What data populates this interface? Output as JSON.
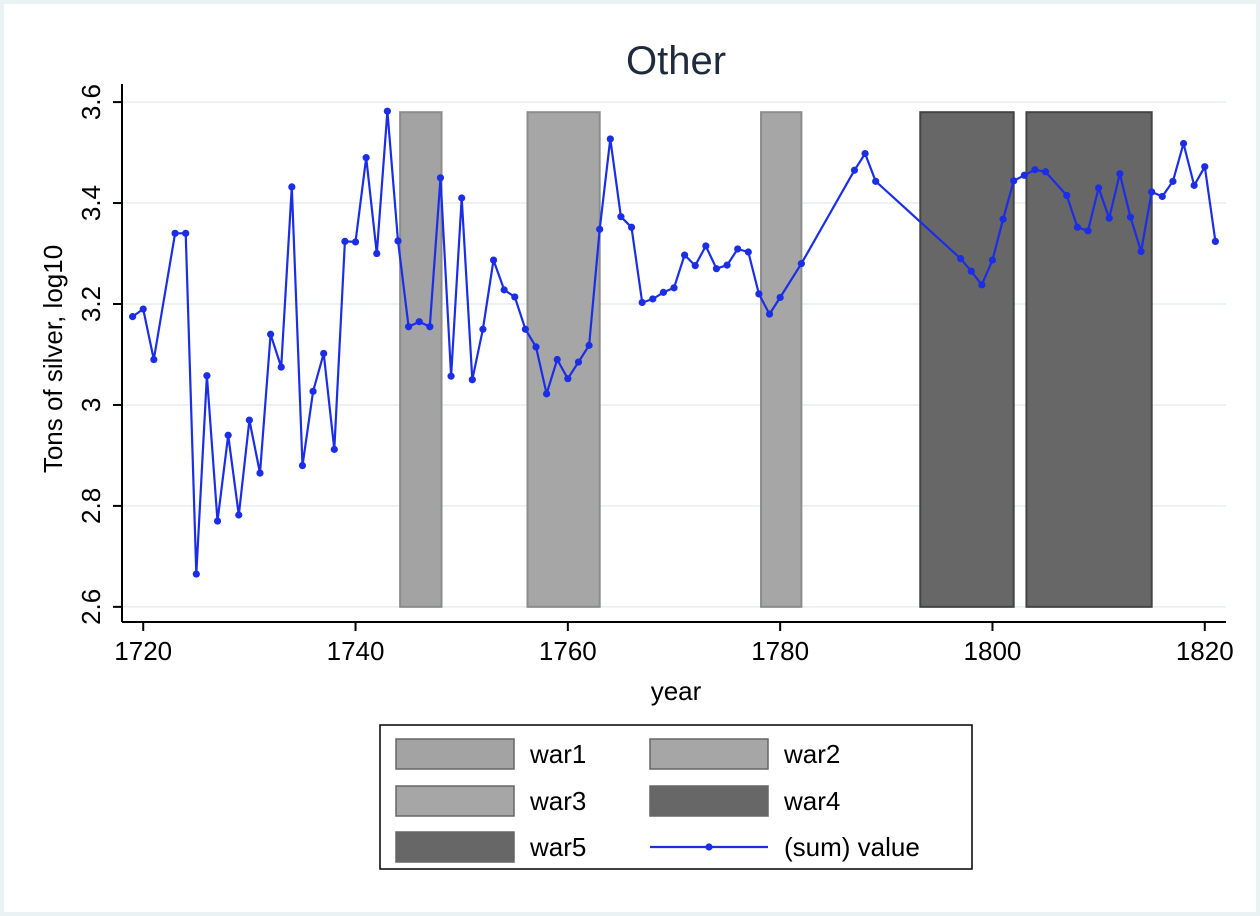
{
  "chart_data": {
    "type": "line",
    "title": "Other",
    "xlabel": "year",
    "ylabel": "Tons of silver, log10",
    "xlim": [
      1718,
      1822
    ],
    "ylim": [
      2.57,
      3.62
    ],
    "x_ticks": [
      1720,
      1740,
      1760,
      1780,
      1800,
      1820
    ],
    "y_ticks": [
      2.6,
      2.8,
      3,
      3.2,
      3.4,
      3.6
    ],
    "y_tick_labels": [
      "2.6",
      "2.8",
      "3",
      "3.2",
      "3.4",
      "3.6"
    ],
    "grid": "horizontal",
    "legend_position": "bottom",
    "wars": [
      {
        "name": "war1",
        "start": 1744.2,
        "end": 1748.1,
        "color": "#a3a3a3",
        "stroke": "#8c8c8c"
      },
      {
        "name": "war2",
        "start": 1756.2,
        "end": 1763.0,
        "color": "#a6a6a6",
        "stroke": "#8c8c8c"
      },
      {
        "name": "war3",
        "start": 1778.2,
        "end": 1782.0,
        "color": "#a6a6a6",
        "stroke": "#8c8c8c"
      },
      {
        "name": "war4",
        "start": 1793.2,
        "end": 1802.0,
        "color": "#676767",
        "stroke": "#444444"
      },
      {
        "name": "war5",
        "start": 1803.2,
        "end": 1815.0,
        "color": "#676767",
        "stroke": "#444444"
      }
    ],
    "bands_range": [
      2.6,
      3.58
    ],
    "series": [
      {
        "name": "(sum) value",
        "color": "#1b2ee6",
        "x": [
          1719,
          1720,
          1721,
          1723,
          1724,
          1725,
          1726,
          1727,
          1728,
          1729,
          1730,
          1731,
          1732,
          1733,
          1734,
          1735,
          1736,
          1737,
          1738,
          1739,
          1740,
          1741,
          1742,
          1743,
          1744,
          1745,
          1746,
          1747,
          1748,
          1749,
          1750,
          1751,
          1752,
          1753,
          1754,
          1755,
          1756,
          1757,
          1758,
          1759,
          1760,
          1761,
          1762,
          1763,
          1764,
          1765,
          1766,
          1767,
          1768,
          1769,
          1770,
          1771,
          1772,
          1773,
          1774,
          1775,
          1776,
          1777,
          1778,
          1779,
          1780,
          1782,
          1787,
          1788,
          1789,
          1797,
          1798,
          1799,
          1800,
          1801,
          1802,
          1803,
          1804,
          1805,
          1807,
          1808,
          1809,
          1810,
          1811,
          1812,
          1813,
          1814,
          1815,
          1816,
          1817,
          1818,
          1819,
          1820,
          1821
        ],
        "y": [
          3.175,
          3.19,
          3.09,
          3.34,
          3.34,
          2.665,
          3.058,
          2.77,
          2.94,
          2.782,
          2.97,
          2.865,
          3.14,
          3.075,
          3.432,
          2.88,
          3.027,
          3.102,
          2.912,
          3.324,
          3.323,
          3.49,
          3.3,
          3.582,
          3.325,
          3.155,
          3.165,
          3.155,
          3.45,
          3.057,
          3.41,
          3.05,
          3.15,
          3.287,
          3.228,
          3.214,
          3.15,
          3.115,
          3.022,
          3.09,
          3.052,
          3.085,
          3.118,
          3.348,
          3.527,
          3.373,
          3.352,
          3.203,
          3.21,
          3.223,
          3.232,
          3.297,
          3.276,
          3.315,
          3.27,
          3.277,
          3.309,
          3.303,
          3.22,
          3.18,
          3.213,
          3.28,
          3.465,
          3.498,
          3.443,
          3.29,
          3.265,
          3.238,
          3.287,
          3.368,
          3.444,
          3.455,
          3.466,
          3.462,
          3.415,
          3.352,
          3.345,
          3.43,
          3.37,
          3.458,
          3.372,
          3.304,
          3.422,
          3.413,
          3.443,
          3.518,
          3.435,
          3.472,
          3.324
        ]
      }
    ],
    "legend": [
      {
        "label": "war1",
        "kind": "box",
        "color": "#a3a3a3"
      },
      {
        "label": "war2",
        "kind": "box",
        "color": "#a6a6a6"
      },
      {
        "label": "war3",
        "kind": "box",
        "color": "#a6a6a6"
      },
      {
        "label": "war4",
        "kind": "box",
        "color": "#676767"
      },
      {
        "label": "war5",
        "kind": "box",
        "color": "#676767"
      },
      {
        "label": "(sum) value",
        "kind": "line",
        "color": "#1b2ee6"
      }
    ]
  }
}
